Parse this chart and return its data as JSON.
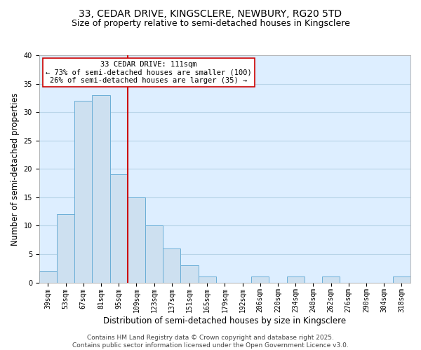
{
  "title_line1": "33, CEDAR DRIVE, KINGSCLERE, NEWBURY, RG20 5TD",
  "title_line2": "Size of property relative to semi-detached houses in Kingsclere",
  "xlabel": "Distribution of semi-detached houses by size in Kingsclere",
  "ylabel": "Number of semi-detached properties",
  "bar_labels": [
    "39sqm",
    "53sqm",
    "67sqm",
    "81sqm",
    "95sqm",
    "109sqm",
    "123sqm",
    "137sqm",
    "151sqm",
    "165sqm",
    "179sqm",
    "192sqm",
    "206sqm",
    "220sqm",
    "234sqm",
    "248sqm",
    "262sqm",
    "276sqm",
    "290sqm",
    "304sqm",
    "318sqm"
  ],
  "bar_values": [
    2,
    12,
    32,
    33,
    19,
    15,
    10,
    6,
    3,
    1,
    0,
    0,
    1,
    0,
    1,
    0,
    1,
    0,
    0,
    0,
    1
  ],
  "bar_color": "#cde0f0",
  "bar_edge_color": "#6aaed6",
  "marker_line_color": "#cc0000",
  "annotation_title": "33 CEDAR DRIVE: 111sqm",
  "annotation_line1": "← 73% of semi-detached houses are smaller (100)",
  "annotation_line2": "26% of semi-detached houses are larger (35) →",
  "annotation_box_color": "#ffffff",
  "annotation_box_edge": "#cc0000",
  "ylim": [
    0,
    40
  ],
  "yticks": [
    0,
    5,
    10,
    15,
    20,
    25,
    30,
    35,
    40
  ],
  "footer_line1": "Contains HM Land Registry data © Crown copyright and database right 2025.",
  "footer_line2": "Contains public sector information licensed under the Open Government Licence v3.0.",
  "bg_color": "#ffffff",
  "plot_bg_color": "#ddeeff",
  "grid_color": "#b8d4e8",
  "title_fontsize": 10,
  "subtitle_fontsize": 9,
  "tick_fontsize": 7,
  "ylabel_fontsize": 8.5,
  "xlabel_fontsize": 8.5,
  "annotation_fontsize": 7.5,
  "footer_fontsize": 6.5
}
